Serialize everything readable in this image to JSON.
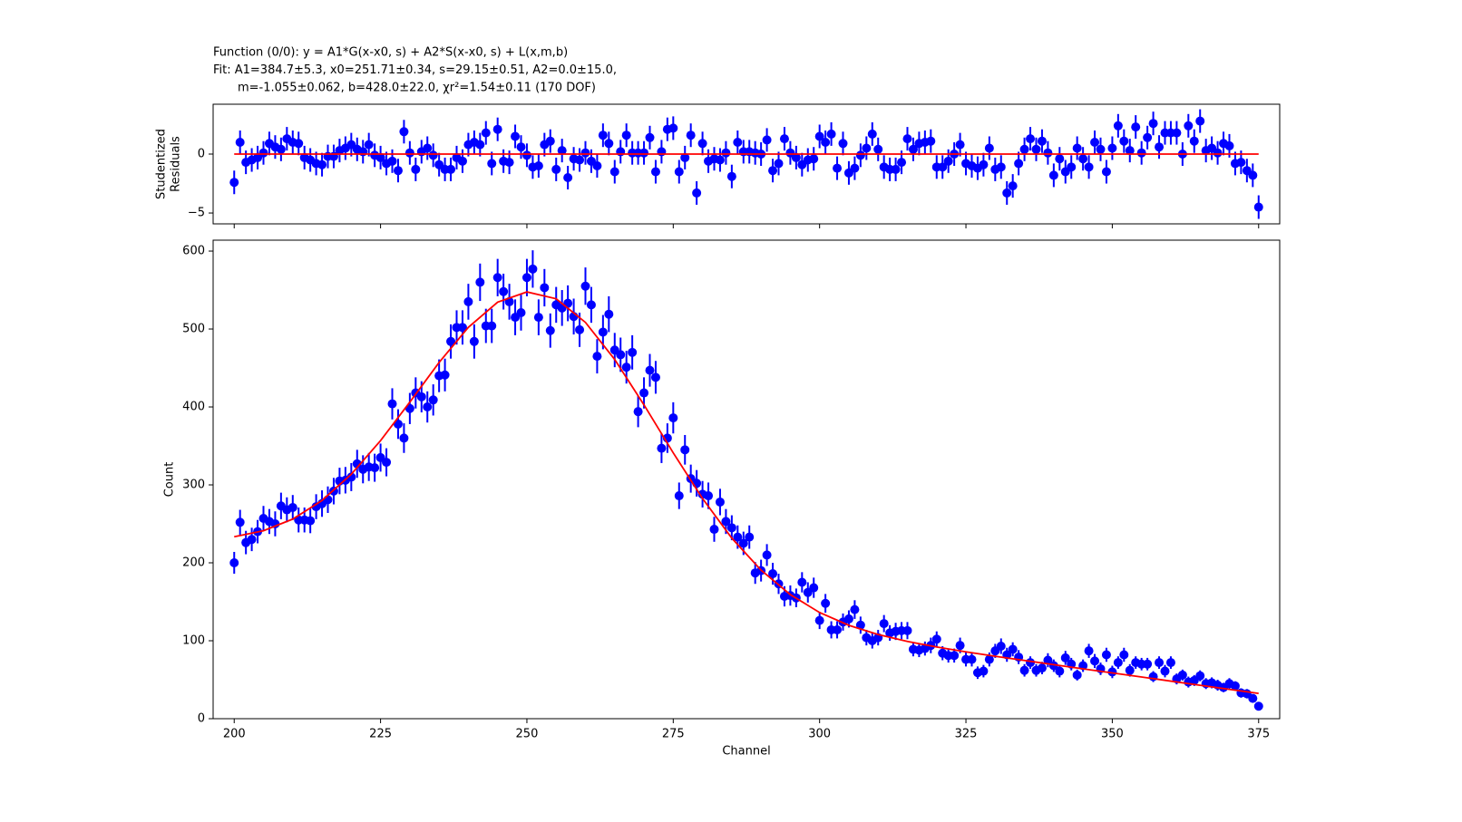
{
  "chart_data": [
    {
      "type": "errorbar",
      "title": [
        "Function (0/0): y = A1*G(x-x0, s) + A2*S(x-x0, s) + L(x,m,b)",
        "Fit: A1=384.7±5.3, x0=251.71±0.34, s=29.15±0.51, A2=0.0±15.0,",
        "m=-1.055±0.062, b=428.0±22.0, χr²=1.54±0.11 (170 DOF)"
      ],
      "ylabel": [
        "Studentized",
        "Residuals"
      ],
      "xlim": [
        196.4,
        378.6
      ],
      "xticks": [
        200,
        225,
        250,
        275,
        300,
        325,
        350,
        375
      ],
      "ylim": [
        -5.92,
        4.23
      ],
      "yticks": [
        {
          "value": -5,
          "label": "−5"
        },
        0
      ],
      "color": "#0000ff",
      "x": [
        200,
        201,
        202,
        203,
        204,
        205,
        206,
        207,
        208,
        209,
        210,
        211,
        212,
        213,
        214,
        215,
        216,
        217,
        218,
        219,
        220,
        221,
        222,
        223,
        224,
        225,
        226,
        227,
        228,
        229,
        230,
        231,
        232,
        233,
        234,
        235,
        236,
        237,
        238,
        239,
        240,
        241,
        242,
        243,
        244,
        245,
        246,
        247,
        248,
        249,
        250,
        251,
        252,
        253,
        254,
        255,
        256,
        257,
        258,
        259,
        260,
        261,
        262,
        263,
        264,
        265,
        266,
        267,
        268,
        269,
        270,
        271,
        272,
        273,
        274,
        275,
        276,
        277,
        278,
        279,
        280,
        281,
        282,
        283,
        284,
        285,
        286,
        287,
        288,
        289,
        290,
        291,
        292,
        293,
        294,
        295,
        296,
        297,
        298,
        299,
        300,
        301,
        302,
        303,
        304,
        305,
        306,
        307,
        308,
        309,
        310,
        311,
        312,
        313,
        314,
        315,
        316,
        317,
        318,
        319,
        320,
        321,
        322,
        323,
        324,
        325,
        326,
        327,
        328,
        329,
        330,
        331,
        332,
        333,
        334,
        335,
        336,
        337,
        338,
        339,
        340,
        341,
        342,
        343,
        344,
        345,
        346,
        347,
        348,
        349,
        350,
        351,
        352,
        353,
        354,
        355,
        356,
        357,
        358,
        359,
        360,
        361,
        362,
        363,
        364,
        365,
        366,
        367,
        368,
        369,
        370,
        371,
        372,
        373,
        374,
        375
      ],
      "values": [
        -2.4,
        1.0,
        -0.7,
        -0.5,
        -0.3,
        0.1,
        0.9,
        0.6,
        0.4,
        1.3,
        1.0,
        0.9,
        -0.3,
        -0.5,
        -0.8,
        -0.9,
        -0.2,
        -0.2,
        0.3,
        0.5,
        0.8,
        0.4,
        0.2,
        0.8,
        -0.1,
        -0.3,
        -0.8,
        -0.6,
        -1.4,
        1.9,
        0.1,
        -1.3,
        0.2,
        0.5,
        -0.1,
        -0.9,
        -1.3,
        -1.3,
        -0.3,
        -0.6,
        0.8,
        1.0,
        0.8,
        1.8,
        -0.8,
        2.1,
        -0.6,
        -0.7,
        1.5,
        0.6,
        -0.1,
        -1.1,
        -1.0,
        0.8,
        1.1,
        -1.3,
        0.3,
        -2.0,
        -0.4,
        -0.5,
        0.1,
        -0.6,
        -1.0,
        1.6,
        0.9,
        -1.5,
        0.2,
        1.6,
        0.1,
        0.1,
        0.1,
        1.4,
        -1.5,
        0.2,
        2.1,
        2.2,
        -1.5,
        -0.3,
        1.6,
        -3.3,
        0.9,
        -0.6,
        -0.4,
        -0.5,
        0.1,
        -1.9,
        1.0,
        0.2,
        0.2,
        0.1,
        0.0,
        1.2,
        -1.4,
        -0.8,
        1.3,
        0.1,
        -0.3,
        -0.9,
        -0.5,
        -0.4,
        1.5,
        1.0,
        1.7,
        -1.2,
        0.9,
        -1.6,
        -1.2,
        -0.1,
        0.5,
        1.7,
        0.4,
        -1.1,
        -1.3,
        -1.3,
        -0.7,
        1.3,
        0.4,
        0.9,
        1.0,
        1.1,
        -1.1,
        -1.1,
        -0.6,
        0.0,
        0.8,
        -0.8,
        -1.0,
        -1.2,
        -0.9,
        0.5,
        -1.3,
        -1.1,
        -3.3,
        -2.7,
        -0.8,
        0.4,
        1.3,
        0.4,
        1.1,
        0.1,
        -1.8,
        -0.4,
        -1.5,
        -1.1,
        0.5,
        -0.4,
        -1.1,
        1.0,
        0.4,
        -1.5,
        0.5,
        2.4,
        1.1,
        0.3,
        2.3,
        0.1,
        1.4,
        2.6,
        0.6,
        1.8,
        1.8,
        1.8,
        0.0,
        2.4,
        1.1,
        2.8,
        0.3,
        0.5,
        0.1,
        0.9,
        0.7,
        -0.8,
        -0.7,
        -1.4,
        -1.8,
        -4.5
      ],
      "error": 1,
      "fit": {
        "color": "#ff0000",
        "x": [
          200,
          375
        ],
        "values": [
          0,
          0
        ]
      }
    },
    {
      "type": "errorbar",
      "xlabel": "Channel",
      "ylabel": "Count",
      "xlim": [
        196.4,
        378.6
      ],
      "xticks": [
        200,
        225,
        250,
        275,
        300,
        325,
        350,
        375
      ],
      "ylim": [
        0,
        614
      ],
      "yticks": [
        0,
        100,
        200,
        300,
        400,
        500,
        600
      ],
      "color": "#0000ff",
      "x": [
        200,
        201,
        202,
        203,
        204,
        205,
        206,
        207,
        208,
        209,
        210,
        211,
        212,
        213,
        214,
        215,
        216,
        217,
        218,
        219,
        220,
        221,
        222,
        223,
        224,
        225,
        226,
        227,
        228,
        229,
        230,
        231,
        232,
        233,
        234,
        235,
        236,
        237,
        238,
        239,
        240,
        241,
        242,
        243,
        244,
        245,
        246,
        247,
        248,
        249,
        250,
        251,
        252,
        253,
        254,
        255,
        256,
        257,
        258,
        259,
        260,
        261,
        262,
        263,
        264,
        265,
        266,
        267,
        268,
        269,
        270,
        271,
        272,
        273,
        274,
        275,
        276,
        277,
        278,
        279,
        280,
        281,
        282,
        283,
        284,
        285,
        286,
        287,
        288,
        289,
        290,
        291,
        292,
        293,
        294,
        295,
        296,
        297,
        298,
        299,
        300,
        301,
        302,
        303,
        304,
        305,
        306,
        307,
        308,
        309,
        310,
        311,
        312,
        313,
        314,
        315,
        316,
        317,
        318,
        319,
        320,
        321,
        322,
        323,
        324,
        325,
        326,
        327,
        328,
        329,
        330,
        331,
        332,
        333,
        334,
        335,
        336,
        337,
        338,
        339,
        340,
        341,
        342,
        343,
        344,
        345,
        346,
        347,
        348,
        349,
        350,
        351,
        352,
        353,
        354,
        355,
        356,
        357,
        358,
        359,
        360,
        361,
        362,
        363,
        364,
        365,
        366,
        367,
        368,
        369,
        370,
        371,
        372,
        373,
        374,
        375
      ],
      "values": [
        200,
        252,
        226,
        230,
        240,
        257,
        253,
        250,
        273,
        268,
        271,
        255,
        255,
        254,
        272,
        276,
        281,
        292,
        305,
        306,
        310,
        327,
        320,
        323,
        322,
        335,
        329,
        404,
        378,
        360,
        398,
        418,
        413,
        400,
        409,
        440,
        441,
        484,
        502,
        502,
        535,
        484,
        560,
        504,
        504,
        566,
        548,
        535,
        515,
        521,
        566,
        577,
        515,
        553,
        498,
        531,
        527,
        533,
        516,
        499,
        555,
        531,
        465,
        496,
        519,
        473,
        467,
        451,
        470,
        394,
        418,
        447,
        438,
        347,
        360,
        386,
        286,
        345,
        308,
        302,
        288,
        286,
        243,
        278,
        253,
        245,
        233,
        225,
        233,
        187,
        190,
        210,
        186,
        173,
        157,
        158,
        155,
        175,
        162,
        168,
        126,
        148,
        114,
        114,
        124,
        128,
        140,
        120,
        104,
        100,
        104,
        122,
        110,
        112,
        113,
        113,
        89,
        88,
        90,
        94,
        102,
        84,
        81,
        81,
        94,
        76,
        76,
        59,
        61,
        76,
        87,
        93,
        82,
        89,
        79,
        62,
        72,
        62,
        65,
        75,
        68,
        61,
        78,
        70,
        56,
        68,
        87,
        74,
        64,
        82,
        60,
        72,
        82,
        62,
        72,
        70,
        70,
        54,
        72,
        61,
        72,
        51,
        56,
        47,
        49,
        55,
        45,
        46,
        43,
        40,
        45,
        42,
        33,
        32,
        26,
        16
      ],
      "errors": [
        14,
        16,
        15,
        15,
        15,
        16,
        16,
        16,
        17,
        16,
        16,
        16,
        16,
        16,
        16,
        17,
        17,
        17,
        17,
        17,
        18,
        18,
        18,
        18,
        18,
        18,
        18,
        20,
        19,
        19,
        20,
        20,
        20,
        20,
        20,
        21,
        21,
        22,
        22,
        22,
        23,
        22,
        24,
        22,
        22,
        24,
        23,
        23,
        23,
        23,
        24,
        24,
        23,
        24,
        22,
        23,
        23,
        23,
        23,
        22,
        24,
        23,
        22,
        22,
        23,
        22,
        22,
        21,
        22,
        20,
        20,
        21,
        21,
        19,
        19,
        20,
        17,
        19,
        18,
        17,
        17,
        17,
        16,
        17,
        16,
        16,
        15,
        15,
        15,
        14,
        14,
        14,
        14,
        13,
        13,
        13,
        12,
        13,
        13,
        13,
        11,
        12,
        11,
        11,
        11,
        11,
        12,
        11,
        10,
        10,
        10,
        11,
        10,
        11,
        11,
        11,
        9,
        9,
        9,
        10,
        10,
        9,
        9,
        9,
        10,
        9,
        9,
        8,
        8,
        9,
        9,
        10,
        9,
        9,
        9,
        8,
        8,
        8,
        8,
        9,
        8,
        8,
        9,
        8,
        7,
        8,
        9,
        9,
        8,
        9,
        8,
        8,
        9,
        8,
        8,
        8,
        8,
        7,
        8,
        8,
        8,
        7,
        7,
        7,
        7,
        7,
        7,
        7,
        7,
        6,
        7,
        6,
        6,
        6,
        5,
        4
      ],
      "fit": {
        "color": "#ff0000",
        "x": [
          200,
          205,
          210,
          215,
          220,
          225,
          230,
          235,
          240,
          245,
          250,
          255,
          260,
          265,
          270,
          275,
          280,
          285,
          290,
          295,
          300,
          305,
          310,
          315,
          320,
          325,
          330,
          335,
          340,
          345,
          350,
          355,
          360,
          365,
          370,
          375
        ],
        "values": [
          233.5,
          241.2,
          256.1,
          280.0,
          313.7,
          356.8,
          406.2,
          457.1,
          502.2,
          534.4,
          547.6,
          538.8,
          508.5,
          460.9,
          402.7,
          341.1,
          282.6,
          231.7,
          190.6,
          159.2,
          136.2,
          119.8,
          108.0,
          99.1,
          92.0,
          85.8,
          80.1,
          74.7,
          69.3,
          64.0,
          58.75,
          53.5,
          48.2,
          42.9,
          37.65,
          32.4
        ]
      }
    }
  ]
}
